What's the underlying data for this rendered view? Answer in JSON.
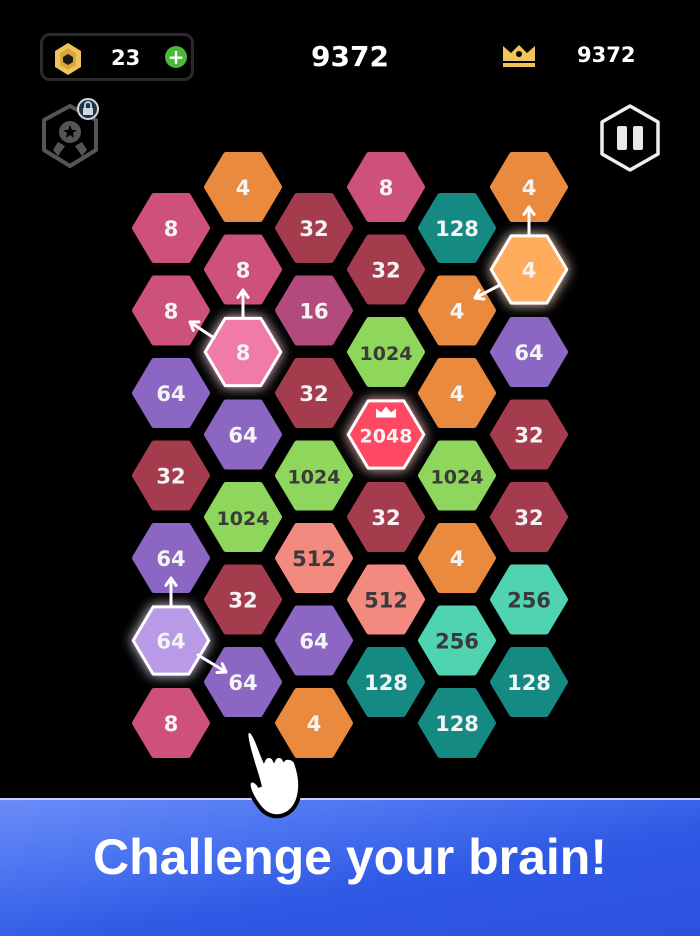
{
  "hud": {
    "coins": "23",
    "score": "9372",
    "best_score": "9372",
    "icons": {
      "coin": "hex-coin-icon",
      "add": "plus-icon",
      "best": "crown-icon",
      "achievements": "locked-medal-icon",
      "pause": "pause-icon"
    }
  },
  "colors": {
    "4": "#ea8a3e",
    "8": "#cd517b",
    "16": "#b24a7b",
    "32": "#a53c4d",
    "64": "#8b66c2",
    "128": "#158a82",
    "256": "#4fd3b1",
    "512": "#f38a80",
    "1024": "#8fd65d",
    "2048": "#ff4a63",
    "banner": "#2f58e4",
    "accent_gold": "#f0c45a"
  },
  "board": {
    "columns": [
      [
        "8",
        "8",
        "64",
        "32",
        "64",
        "64",
        "8"
      ],
      [
        "4",
        "8",
        "8",
        "64",
        "1024",
        "32",
        "64"
      ],
      [
        "32",
        "16",
        "32",
        "1024",
        "512",
        "64",
        "4"
      ],
      [
        "8",
        "32",
        "1024",
        "2048",
        "32",
        "512",
        "128"
      ],
      [
        "128",
        "4",
        "4",
        "1024",
        "4",
        "256",
        "128"
      ],
      [
        "4",
        "4",
        "64",
        "32",
        "32",
        "256",
        "128"
      ]
    ],
    "highlighted": [
      "0-5",
      "1-2",
      "3-3",
      "5-1"
    ]
  },
  "banner": {
    "text": "Challenge your brain!"
  }
}
